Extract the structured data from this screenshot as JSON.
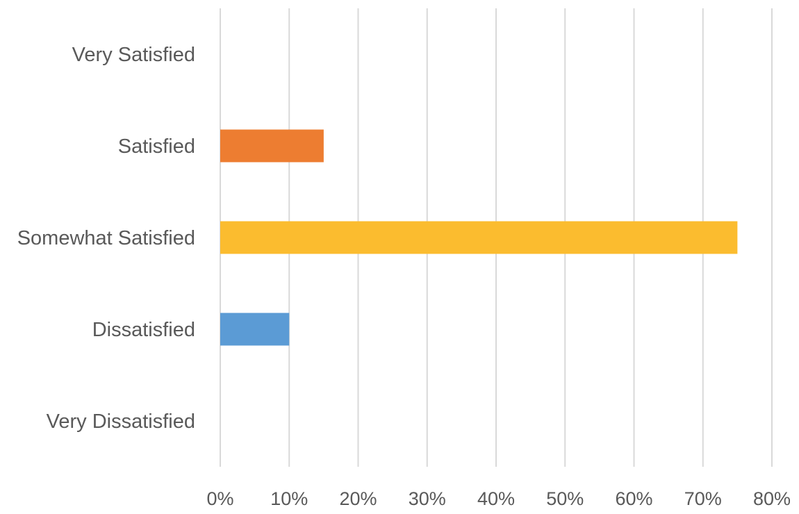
{
  "chart_data": {
    "type": "bar",
    "orientation": "horizontal",
    "categories": [
      "Very Satisfied",
      "Satisfied",
      "Somewhat Satisfied",
      "Dissatisfied",
      "Very Dissatisfied"
    ],
    "values": [
      0,
      15,
      75,
      10,
      0
    ],
    "unit": "%",
    "bar_colors": [
      "#ed7d31",
      "#ed7d31",
      "#fbbc2f",
      "#5b9bd5",
      "#5b9bd5"
    ],
    "xlim": [
      0,
      80
    ],
    "xticks": [
      0,
      10,
      20,
      30,
      40,
      50,
      60,
      70,
      80
    ],
    "xtick_labels": [
      "0%",
      "10%",
      "20%",
      "30%",
      "40%",
      "50%",
      "60%",
      "70%",
      "80%"
    ],
    "grid": true,
    "title": "",
    "xlabel": "",
    "ylabel": "",
    "legend": "none"
  }
}
